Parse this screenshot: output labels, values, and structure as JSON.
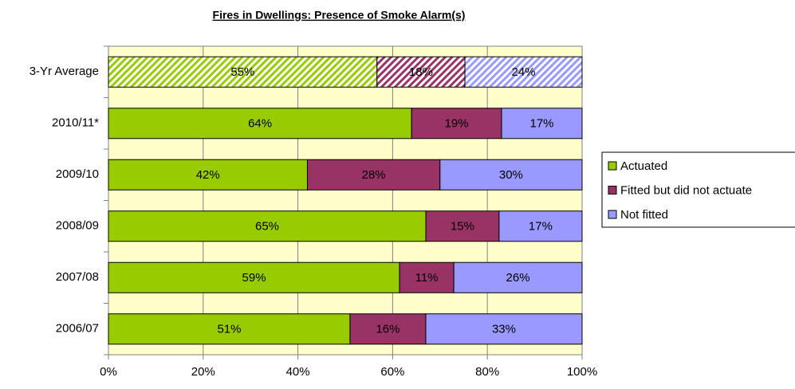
{
  "chart_data": {
    "type": "stacked_barh_percent",
    "title": "Fires in Dwellings: Presence of Smoke Alarm(s)",
    "categories": [
      "3-Yr Average",
      "2010/11*",
      "2009/10",
      "2008/09",
      "2007/08",
      "2006/07"
    ],
    "hatched": [
      true,
      false,
      false,
      false,
      false,
      false
    ],
    "series": [
      {
        "name": "Actuated",
        "color": "#99cc00",
        "values": [
          55,
          64,
          42,
          65,
          59,
          51
        ],
        "value_labels": [
          "55%",
          "64%",
          "42%",
          "65%",
          "59%",
          "51%"
        ]
      },
      {
        "name": "Fitted but did not actuate",
        "color": "#993366",
        "values": [
          18,
          19,
          28,
          15,
          11,
          16
        ],
        "value_labels": [
          "18%",
          "19%",
          "28%",
          "15%",
          "11%",
          "16%"
        ]
      },
      {
        "name": "Not fitted",
        "color": "#9999ff",
        "values": [
          24,
          17,
          30,
          17,
          26,
          33
        ],
        "value_labels": [
          "24%",
          "17%",
          "30%",
          "17%",
          "26%",
          "33%"
        ]
      }
    ],
    "xlim": [
      0,
      100
    ],
    "xticks": [
      {
        "value": 0,
        "label": "0%"
      },
      {
        "value": 20,
        "label": "20%"
      },
      {
        "value": 40,
        "label": "40%"
      },
      {
        "value": 60,
        "label": "60%"
      },
      {
        "value": 80,
        "label": "80%"
      },
      {
        "value": 100,
        "label": "100%"
      }
    ],
    "grid": true,
    "legend": "right",
    "plot_background": "#ffffcc"
  }
}
